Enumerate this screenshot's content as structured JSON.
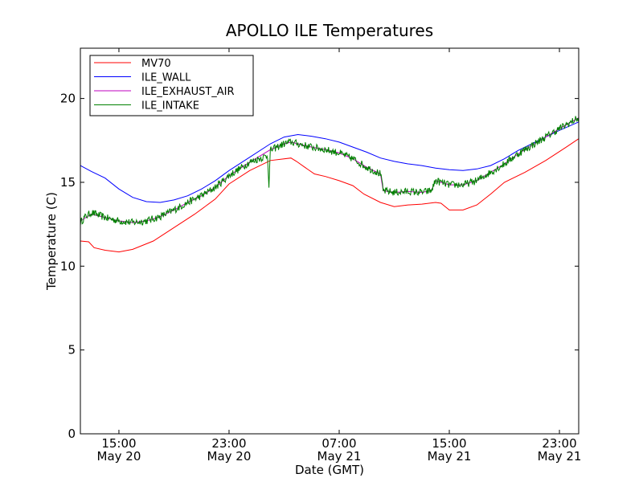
{
  "chart_data": {
    "type": "line",
    "title": "APOLLO ILE Temperatures",
    "xlabel": "Date (GMT)",
    "ylabel": "Temperature (C)",
    "xlim": [
      12.2,
      48.4
    ],
    "ylim": [
      0,
      23
    ],
    "x_unit": "hours since 2000-05-20 00:00 GMT",
    "x_ticks": [
      {
        "value": 15,
        "line1": "15:00",
        "line2": "May 20"
      },
      {
        "value": 23,
        "line1": "23:00",
        "line2": "May 20"
      },
      {
        "value": 31,
        "line1": "07:00",
        "line2": "May 21"
      },
      {
        "value": 39,
        "line1": "15:00",
        "line2": "May 21"
      },
      {
        "value": 47,
        "line1": "23:00",
        "line2": "May 21"
      }
    ],
    "y_ticks": [
      {
        "value": 0,
        "label": "0"
      },
      {
        "value": 5,
        "label": "5"
      },
      {
        "value": 10,
        "label": "10"
      },
      {
        "value": 15,
        "label": "15"
      },
      {
        "value": 20,
        "label": "20"
      }
    ],
    "legend": {
      "placement": "top-left",
      "entries": [
        {
          "label": "MV70",
          "color": "#ff0000"
        },
        {
          "label": "ILE_WALL",
          "color": "#0000ff"
        },
        {
          "label": "ILE_EXHAUST_AIR",
          "color": "#bf00bf"
        },
        {
          "label": "ILE_INTAKE",
          "color": "#008000"
        }
      ]
    },
    "series": [
      {
        "name": "MV70",
        "color": "#ff0000",
        "noise": 0,
        "x": [
          12.2,
          12.8,
          13.2,
          14.0,
          15.0,
          16.0,
          17.5,
          19.0,
          20.5,
          22.0,
          23.0,
          24.5,
          26.0,
          27.5,
          27.9,
          28.5,
          29.2,
          30.0,
          31.0,
          32.0,
          32.8,
          34.0,
          35.0,
          36.0,
          37.0,
          38.0,
          38.4,
          39.0,
          40.0,
          41.0,
          42.0,
          43.0,
          44.5,
          46.0,
          47.5,
          48.4
        ],
        "y": [
          11.5,
          11.45,
          11.1,
          10.95,
          10.85,
          11.0,
          11.5,
          12.3,
          13.1,
          14.0,
          14.9,
          15.7,
          16.3,
          16.45,
          16.25,
          15.9,
          15.5,
          15.35,
          15.1,
          14.8,
          14.3,
          13.8,
          13.55,
          13.65,
          13.7,
          13.8,
          13.75,
          13.35,
          13.35,
          13.65,
          14.3,
          15.0,
          15.6,
          16.3,
          17.1,
          17.6
        ]
      },
      {
        "name": "ILE_WALL",
        "color": "#0000ff",
        "noise": 0,
        "x": [
          12.2,
          13.0,
          14.0,
          15.0,
          16.0,
          17.0,
          18.0,
          19.0,
          20.0,
          21.0,
          22.0,
          23.0,
          24.5,
          26.0,
          27.0,
          28.0,
          29.0,
          30.0,
          31.0,
          32.0,
          33.0,
          34.0,
          35.0,
          36.0,
          37.0,
          38.0,
          39.0,
          40.0,
          41.0,
          42.0,
          43.0,
          44.0,
          45.0,
          46.0,
          47.0,
          48.4
        ],
        "y": [
          16.0,
          15.65,
          15.25,
          14.6,
          14.1,
          13.85,
          13.8,
          13.95,
          14.2,
          14.6,
          15.1,
          15.7,
          16.5,
          17.3,
          17.7,
          17.85,
          17.75,
          17.6,
          17.4,
          17.1,
          16.8,
          16.45,
          16.25,
          16.1,
          16.0,
          15.85,
          15.75,
          15.7,
          15.8,
          16.0,
          16.4,
          16.9,
          17.3,
          17.7,
          18.1,
          18.6
        ]
      },
      {
        "name": "ILE_EXHAUST_AIR",
        "color": "#bf00bf",
        "noise": 0,
        "x": [
          12.2,
          13.0,
          14.0,
          15.0,
          16.0,
          17.0,
          18.0,
          19.0,
          20.0,
          21.0,
          22.0,
          23.0,
          24.5,
          26.0,
          27.0,
          27.5,
          28.0,
          29.0,
          30.0,
          31.0,
          32.0,
          33.0,
          34.0,
          34.2,
          35.0,
          36.0,
          37.0,
          37.7,
          38.0,
          39.0,
          40.0,
          41.0,
          42.0,
          43.0,
          44.0,
          45.0,
          46.0,
          47.0,
          48.4
        ],
        "y": [
          12.7,
          13.1,
          12.9,
          12.7,
          12.6,
          12.7,
          12.95,
          13.35,
          13.8,
          14.2,
          14.7,
          15.4,
          16.2,
          16.95,
          17.3,
          17.4,
          17.3,
          17.1,
          16.95,
          16.75,
          16.4,
          15.9,
          15.5,
          14.5,
          14.4,
          14.45,
          14.4,
          14.5,
          15.1,
          14.85,
          14.85,
          15.1,
          15.6,
          16.1,
          16.7,
          17.2,
          17.7,
          18.2,
          18.85
        ]
      },
      {
        "name": "ILE_INTAKE",
        "color": "#008000",
        "noise": 0.22,
        "x": [
          12.2,
          12.5,
          13.0,
          14.0,
          15.0,
          16.0,
          17.0,
          18.0,
          19.0,
          20.0,
          21.0,
          22.0,
          23.0,
          24.5,
          25.8,
          25.9,
          26.0,
          27.0,
          27.5,
          28.0,
          29.0,
          30.0,
          31.0,
          32.0,
          33.0,
          34.0,
          34.2,
          35.0,
          36.0,
          37.0,
          37.7,
          38.0,
          39.0,
          40.0,
          41.0,
          42.0,
          43.0,
          44.0,
          45.0,
          46.0,
          47.0,
          48.4
        ],
        "y": [
          12.6,
          12.9,
          13.2,
          12.9,
          12.7,
          12.6,
          12.7,
          12.95,
          13.35,
          13.8,
          14.2,
          14.7,
          15.4,
          16.2,
          16.6,
          14.8,
          16.9,
          17.3,
          17.4,
          17.3,
          17.1,
          16.95,
          16.75,
          16.4,
          15.9,
          15.5,
          14.5,
          14.4,
          14.45,
          14.4,
          14.5,
          15.1,
          14.85,
          14.85,
          15.1,
          15.6,
          16.1,
          16.7,
          17.2,
          17.7,
          18.2,
          18.85
        ]
      }
    ]
  }
}
